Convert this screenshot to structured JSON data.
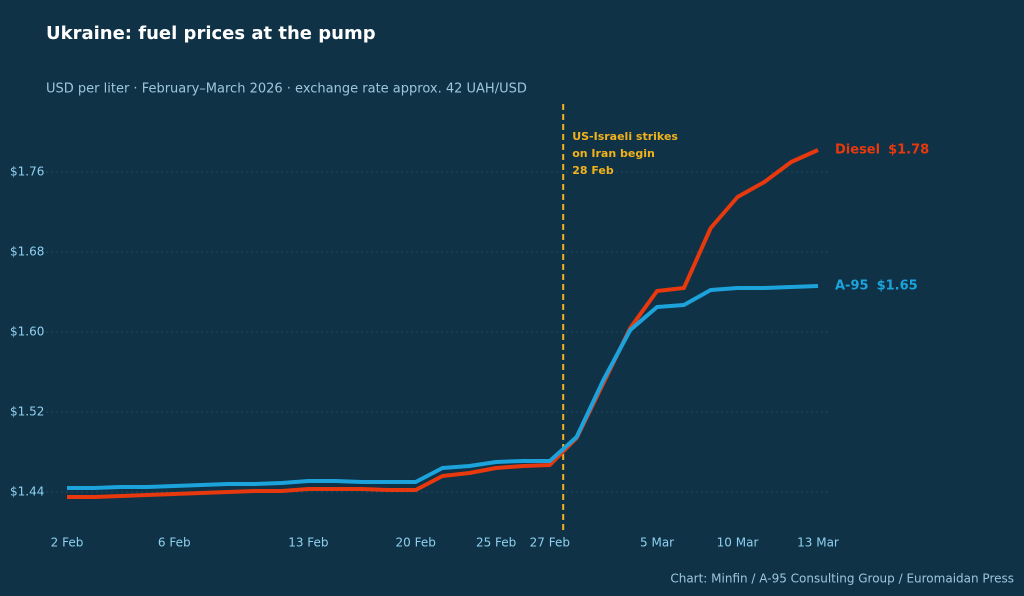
{
  "chart_data": {
    "type": "line",
    "title": "Ukraine: fuel prices at the pump",
    "subtitle": "USD per liter  ·  February–March 2026  ·  exchange rate approx. 42 UAH/USD",
    "source": "Chart: Minfin / A-95 Consulting Group / Euromaidan Press",
    "annotation": "US-Israeli strikes on Iran begin 28 Feb",
    "categories": [
      "2 Feb",
      null,
      null,
      null,
      "6 Feb",
      null,
      null,
      null,
      null,
      "13 Feb",
      null,
      null,
      null,
      "20 Feb",
      null,
      null,
      "25 Feb",
      null,
      "27 Feb",
      null,
      null,
      null,
      "5 Mar",
      null,
      null,
      "10 Mar",
      null,
      null,
      "13 Mar"
    ],
    "series": [
      {
        "name": "Diesel",
        "color": "#e8380d",
        "values": [
          1.435,
          1.435,
          1.436,
          1.437,
          1.438,
          1.439,
          1.44,
          1.441,
          1.441,
          1.443,
          1.443,
          1.443,
          1.442,
          1.442,
          1.456,
          1.459,
          1.464,
          1.466,
          1.467,
          1.494,
          1.549,
          1.604,
          1.641,
          1.644,
          1.704,
          1.735,
          1.75,
          1.77,
          1.782
        ],
        "value_labels": [
          null,
          null,
          null,
          null,
          null,
          null,
          null,
          null,
          null,
          null,
          null,
          null,
          null,
          null,
          null,
          null,
          null,
          null,
          null,
          null,
          null,
          null,
          null,
          null,
          null,
          null,
          null,
          null,
          "$1.78"
        ]
      },
      {
        "name": "A-95",
        "color": "#1ca3dc",
        "values": [
          1.444,
          1.444,
          1.445,
          1.445,
          1.446,
          1.447,
          1.448,
          1.448,
          1.449,
          1.451,
          1.451,
          1.45,
          1.45,
          1.45,
          1.464,
          1.466,
          1.47,
          1.471,
          1.471,
          1.495,
          1.552,
          1.602,
          1.625,
          1.627,
          1.642,
          1.644,
          1.644,
          1.645,
          1.646
        ],
        "value_labels": [
          null,
          null,
          null,
          null,
          null,
          null,
          null,
          null,
          null,
          null,
          null,
          null,
          null,
          null,
          null,
          null,
          null,
          null,
          null,
          null,
          null,
          null,
          null,
          null,
          null,
          null,
          null,
          null,
          "$1.65"
        ]
      }
    ],
    "ylim": [
      1.4,
      1.83
    ],
    "yticks": [
      {
        "value": 1.44,
        "label": "$1.44"
      },
      {
        "value": 1.52,
        "label": "$1.52"
      },
      {
        "value": 1.6,
        "label": "$1.60"
      },
      {
        "value": 1.68,
        "label": "$1.68"
      },
      {
        "value": 1.76,
        "label": "$1.76"
      }
    ],
    "grid": true
  }
}
